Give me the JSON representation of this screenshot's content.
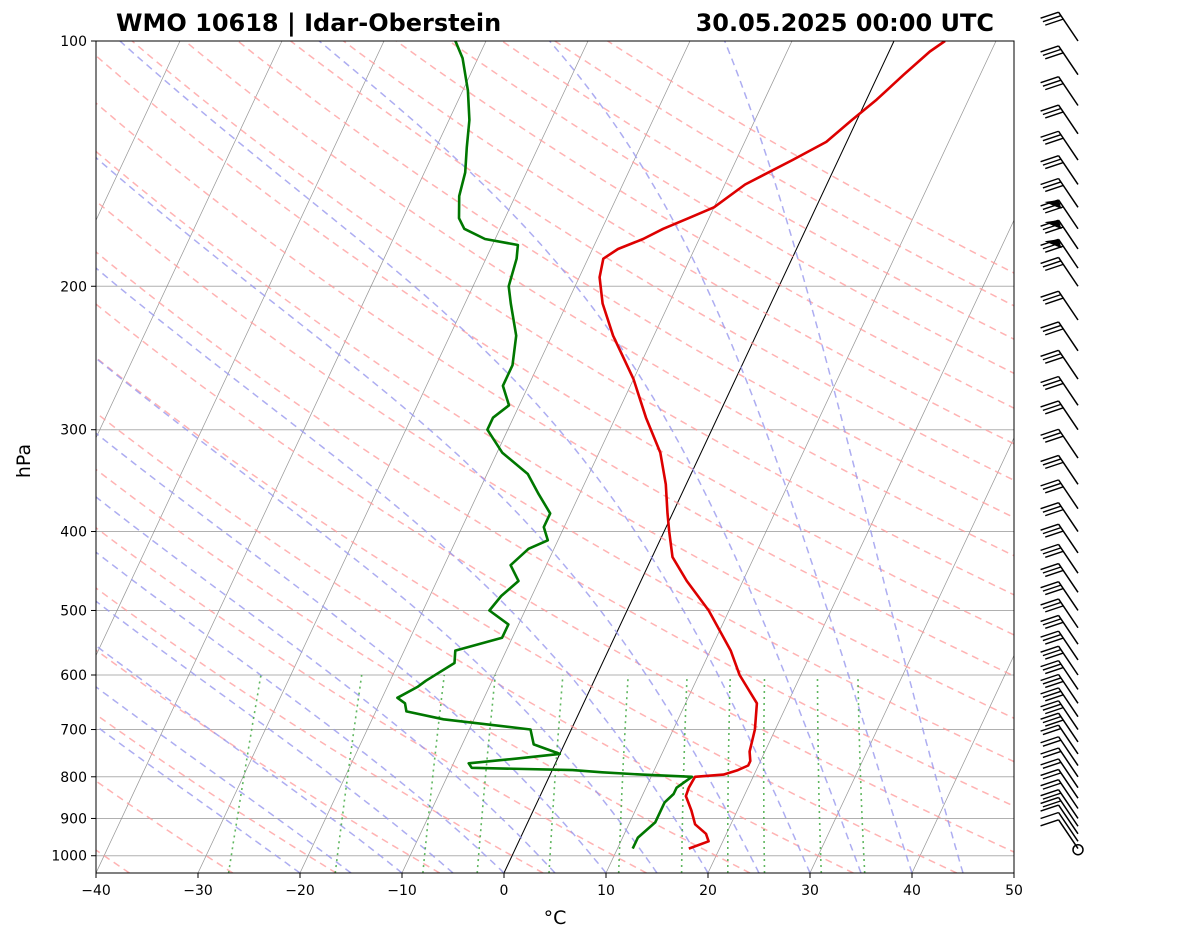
{
  "header": {
    "station": "WMO 10618 | Idar-Oberstein",
    "datetime": "30.05.2025 00:00 UTC"
  },
  "chart_data": {
    "type": "skew-t",
    "title": "WMO 10618 | Idar-Oberstein",
    "subtitle": "30.05.2025 00:00 UTC",
    "xlabel": "°C",
    "ylabel": "hPa",
    "xlim": [
      -40,
      50
    ],
    "ylim": [
      1050,
      100
    ],
    "y_log_scale": true,
    "x_ticks": [
      -40,
      -30,
      -20,
      -10,
      0,
      10,
      20,
      30,
      40,
      50
    ],
    "x_tick_labels": [
      "−40",
      "−30",
      "−20",
      "−10",
      "0",
      "10",
      "20",
      "30",
      "40",
      "50"
    ],
    "y_ticks": [
      100,
      200,
      300,
      400,
      500,
      600,
      700,
      800,
      900,
      1000
    ],
    "y_tick_labels": [
      "100",
      "200",
      "300",
      "400",
      "500",
      "600",
      "700",
      "800",
      "900",
      "1000"
    ],
    "grid": true,
    "colors": {
      "temperature": "#dd0000",
      "dewpoint": "#007700",
      "dry_adiabat": "#ff9999",
      "moist_adiabat": "#9999ee",
      "mixing_ratio": "#44aa44",
      "isotherm": "#888888",
      "grid": "#b0b0b0"
    },
    "series": [
      {
        "name": "Temperature",
        "points": [
          [
            980,
            17.0
          ],
          [
            960,
            18.6
          ],
          [
            940,
            18.0
          ],
          [
            915,
            16.5
          ],
          [
            880,
            15.5
          ],
          [
            845,
            14.3
          ],
          [
            825,
            14.2
          ],
          [
            800,
            14.3
          ],
          [
            795,
            17.0
          ],
          [
            785,
            18.2
          ],
          [
            775,
            19.0
          ],
          [
            765,
            19.0
          ],
          [
            745,
            18.5
          ],
          [
            700,
            18.0
          ],
          [
            650,
            17.0
          ],
          [
            600,
            14.0
          ],
          [
            560,
            12.0
          ],
          [
            500,
            8.0
          ],
          [
            460,
            4.5
          ],
          [
            430,
            2.0
          ],
          [
            400,
            0.5
          ],
          [
            380,
            -0.5
          ],
          [
            350,
            -2.0
          ],
          [
            320,
            -4.0
          ],
          [
            290,
            -7.0
          ],
          [
            260,
            -10.0
          ],
          [
            230,
            -14.0
          ],
          [
            210,
            -16.5
          ],
          [
            195,
            -18.0
          ],
          [
            185,
            -18.5
          ],
          [
            180,
            -17.5
          ],
          [
            175,
            -15.5
          ],
          [
            170,
            -14.0
          ],
          [
            165,
            -12.0
          ],
          [
            160,
            -10.0
          ],
          [
            150,
            -8.0
          ],
          [
            140,
            -4.5
          ],
          [
            133,
            -2.0
          ],
          [
            125,
            -0.5
          ],
          [
            118,
            1.0
          ],
          [
            110,
            2.5
          ],
          [
            103,
            4.0
          ],
          [
            100,
            5.0
          ]
        ]
      },
      {
        "name": "Dewpoint",
        "points": [
          [
            980,
            11.5
          ],
          [
            950,
            11.5
          ],
          [
            910,
            12.5
          ],
          [
            860,
            12.5
          ],
          [
            840,
            13.0
          ],
          [
            825,
            13.0
          ],
          [
            800,
            14.0
          ],
          [
            795,
            9.0
          ],
          [
            790,
            5.0
          ],
          [
            785,
            2.0
          ],
          [
            780,
            -8.0
          ],
          [
            770,
            -8.5
          ],
          [
            760,
            -4.0
          ],
          [
            750,
            0.0
          ],
          [
            730,
            -3.0
          ],
          [
            700,
            -4.0
          ],
          [
            680,
            -13.0
          ],
          [
            665,
            -17.0
          ],
          [
            650,
            -17.5
          ],
          [
            640,
            -18.5
          ],
          [
            620,
            -17.0
          ],
          [
            610,
            -16.5
          ],
          [
            580,
            -14.5
          ],
          [
            560,
            -15.0
          ],
          [
            540,
            -11.0
          ],
          [
            520,
            -11.0
          ],
          [
            500,
            -13.5
          ],
          [
            480,
            -13.0
          ],
          [
            460,
            -12.0
          ],
          [
            440,
            -13.5
          ],
          [
            420,
            -12.5
          ],
          [
            410,
            -11.0
          ],
          [
            395,
            -12.0
          ],
          [
            380,
            -12.0
          ],
          [
            360,
            -14.0
          ],
          [
            340,
            -16.0
          ],
          [
            320,
            -19.5
          ],
          [
            300,
            -22.0
          ],
          [
            290,
            -22.0
          ],
          [
            280,
            -21.0
          ],
          [
            265,
            -22.5
          ],
          [
            250,
            -22.5
          ],
          [
            230,
            -23.5
          ],
          [
            210,
            -25.5
          ],
          [
            200,
            -26.5
          ],
          [
            185,
            -27.0
          ],
          [
            178,
            -27.5
          ],
          [
            175,
            -31.0
          ],
          [
            170,
            -33.5
          ],
          [
            165,
            -34.5
          ],
          [
            155,
            -35.5
          ],
          [
            145,
            -36.0
          ],
          [
            135,
            -37.0
          ],
          [
            125,
            -38.0
          ],
          [
            115,
            -39.5
          ],
          [
            105,
            -41.5
          ],
          [
            100,
            -43.0
          ]
        ]
      }
    ],
    "wind_profile_levels": [
      1000,
      980,
      960,
      940,
      920,
      900,
      875,
      850,
      825,
      800,
      775,
      750,
      725,
      700,
      675,
      650,
      625,
      600,
      575,
      550,
      525,
      500,
      475,
      450,
      425,
      400,
      375,
      350,
      325,
      300,
      280,
      260,
      240,
      220,
      200,
      190,
      180,
      170,
      160,
      150,
      140,
      130,
      120,
      110,
      100
    ]
  }
}
